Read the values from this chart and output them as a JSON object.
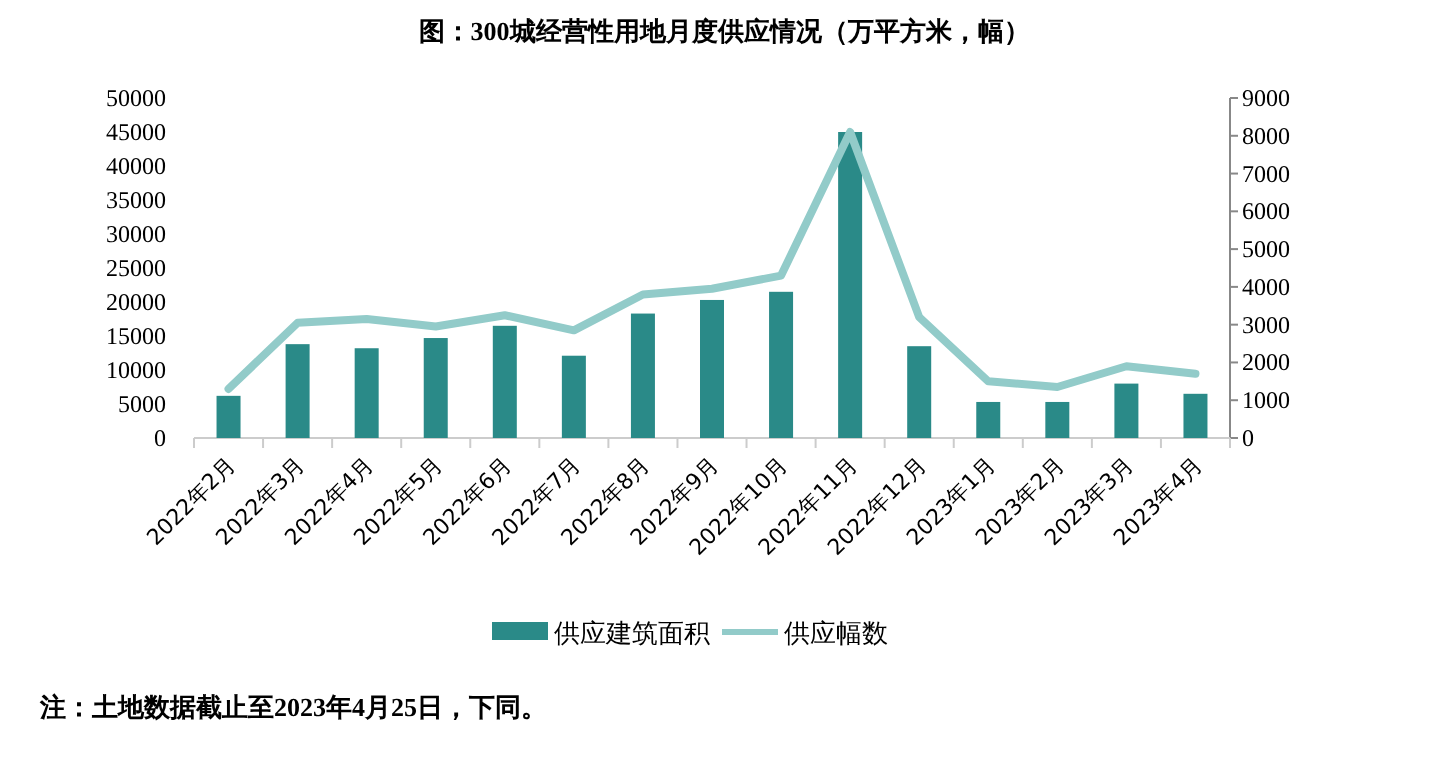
{
  "chart_data": {
    "type": "bar",
    "title": "图：300城经营性用地月度供应情况（万平方米，幅）",
    "categories": [
      "2022年2月",
      "2022年3月",
      "2022年4月",
      "2022年5月",
      "2022年6月",
      "2022年7月",
      "2022年8月",
      "2022年9月",
      "2022年10月",
      "2022年11月",
      "2022年12月",
      "2023年1月",
      "2023年2月",
      "2023年3月",
      "2023年4月"
    ],
    "series": [
      {
        "name": "供应建筑面积",
        "color": "#2a8a88",
        "values": [
          6200,
          13800,
          13200,
          14700,
          16500,
          12100,
          18300,
          20300,
          21500,
          45000,
          13500,
          5300,
          5300,
          8000,
          6500
        ]
      },
      {
        "name": "供应幅数",
        "type": "line",
        "axis": "y2",
        "color": "#92cbc9",
        "values": [
          1300,
          3050,
          3150,
          2950,
          3250,
          2850,
          3800,
          3950,
          4300,
          8100,
          3200,
          1500,
          1350,
          1900,
          1700
        ]
      }
    ],
    "ylim": [
      0,
      50000
    ],
    "yticks": [
      0,
      5000,
      10000,
      15000,
      20000,
      25000,
      30000,
      35000,
      40000,
      45000,
      50000
    ],
    "y2lim": [
      0,
      9000
    ],
    "y2ticks": [
      0,
      1000,
      2000,
      3000,
      4000,
      5000,
      6000,
      7000,
      8000,
      9000
    ],
    "grid": false,
    "legend": "bottom",
    "marker": "none",
    "line_style": "solid",
    "annotations": [
      "注：土地数据截止至2023年4月25日，下同。"
    ]
  }
}
